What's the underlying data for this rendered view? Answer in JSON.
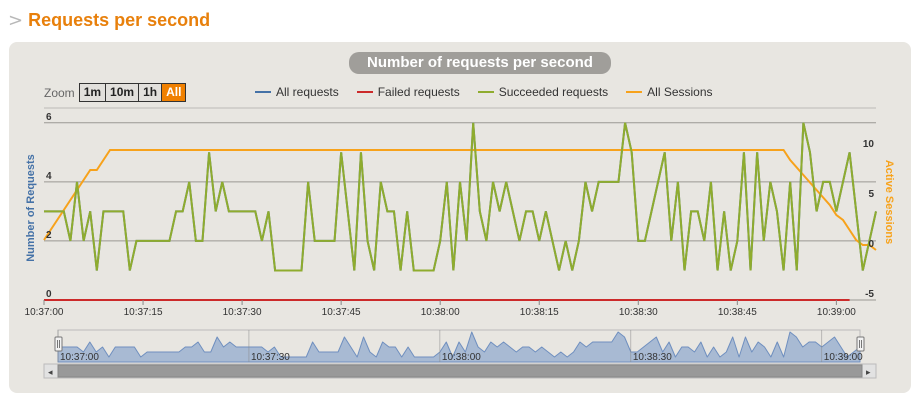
{
  "page": {
    "chevron": ">",
    "title": "Requests per second"
  },
  "zoom": {
    "label": "Zoom",
    "buttons": [
      "1m",
      "10m",
      "1h",
      "All"
    ],
    "active": "All"
  },
  "chart_data": {
    "type": "line",
    "title": "Number of requests per second",
    "ylabel": "Number of Requests",
    "y2label": "Active Sessions",
    "ylim": [
      0,
      6.5
    ],
    "y2lim": [
      -5,
      10
    ],
    "yticks": [
      "0",
      "2",
      "4",
      "6"
    ],
    "y2ticks": [
      "-5",
      "0",
      "5",
      "10"
    ],
    "xticks": [
      "10:37:00",
      "10:37:15",
      "10:37:30",
      "10:37:45",
      "10:38:00",
      "10:38:15",
      "10:38:30",
      "10:38:45",
      "10:39:00"
    ],
    "x_start": "10:37:00",
    "x_step_seconds": 1,
    "legend_position": "top",
    "grid": true,
    "series": [
      {
        "name": "All requests",
        "color": "#4572a7",
        "axis": "left",
        "values": [
          3,
          3,
          3,
          3,
          2,
          4,
          2,
          3,
          1,
          3,
          3,
          3,
          3,
          1,
          2,
          2,
          2,
          2,
          2,
          2,
          3,
          3,
          4,
          2,
          2,
          5,
          3,
          4,
          3,
          3,
          3,
          3,
          3,
          2,
          3,
          1,
          1,
          1,
          1,
          1,
          4,
          2,
          2,
          2,
          2,
          5,
          3,
          1,
          5,
          2,
          1,
          4,
          3,
          3,
          1,
          3,
          1,
          1,
          1,
          1,
          2,
          4,
          1,
          4,
          2,
          6,
          3,
          2,
          4,
          3,
          4,
          3,
          2,
          3,
          3,
          2,
          3,
          2,
          1,
          2,
          1,
          2,
          4,
          3,
          4,
          4,
          4,
          4,
          6,
          5,
          2,
          2,
          3,
          4,
          5,
          2,
          4,
          1,
          3,
          3,
          2,
          4,
          1,
          3,
          1,
          2,
          5,
          1,
          5,
          2,
          4,
          3,
          1,
          4,
          1,
          6,
          5,
          3,
          4,
          4,
          3,
          4,
          5,
          3,
          1,
          2,
          3
        ]
      },
      {
        "name": "Failed requests",
        "color": "#cc2a2a",
        "axis": "left",
        "values": [
          0,
          0,
          0,
          0,
          0,
          0,
          0,
          0,
          0,
          0,
          0,
          0,
          0,
          0,
          0,
          0,
          0,
          0,
          0,
          0,
          0,
          0,
          0,
          0,
          0,
          0,
          0,
          0,
          0,
          0,
          0,
          0,
          0,
          0,
          0,
          0,
          0,
          0,
          0,
          0,
          0,
          0,
          0,
          0,
          0,
          0,
          0,
          0,
          0,
          0,
          0,
          0,
          0,
          0,
          0,
          0,
          0,
          0,
          0,
          0,
          0,
          0,
          0,
          0,
          0,
          0,
          0,
          0,
          0,
          0,
          0,
          0,
          0,
          0,
          0,
          0,
          0,
          0,
          0,
          0,
          0,
          0,
          0,
          0,
          0,
          0,
          0,
          0,
          0,
          0,
          0,
          0,
          0,
          0,
          0,
          0,
          0,
          0,
          0,
          0,
          0,
          0,
          0,
          0,
          0,
          0,
          0,
          0,
          0,
          0,
          0,
          0,
          0,
          0,
          0,
          0,
          0,
          0,
          0,
          0,
          0,
          0,
          0
        ]
      },
      {
        "name": "Succeeded requests",
        "color": "#8fac2e",
        "axis": "left",
        "values": [
          3,
          3,
          3,
          3,
          2,
          4,
          2,
          3,
          1,
          3,
          3,
          3,
          3,
          1,
          2,
          2,
          2,
          2,
          2,
          2,
          3,
          3,
          4,
          2,
          2,
          5,
          3,
          4,
          3,
          3,
          3,
          3,
          3,
          2,
          3,
          1,
          1,
          1,
          1,
          1,
          4,
          2,
          2,
          2,
          2,
          5,
          3,
          1,
          5,
          2,
          1,
          4,
          3,
          3,
          1,
          3,
          1,
          1,
          1,
          1,
          2,
          4,
          1,
          4,
          2,
          6,
          3,
          2,
          4,
          3,
          4,
          3,
          2,
          3,
          3,
          2,
          3,
          2,
          1,
          2,
          1,
          2,
          4,
          3,
          4,
          4,
          4,
          4,
          6,
          5,
          2,
          2,
          3,
          4,
          5,
          2,
          4,
          1,
          3,
          3,
          2,
          4,
          1,
          3,
          1,
          2,
          5,
          1,
          5,
          2,
          4,
          3,
          1,
          4,
          1,
          6,
          5,
          3,
          4,
          4,
          3,
          4,
          5,
          3,
          1,
          2,
          3
        ]
      },
      {
        "name": "All Sessions",
        "color": "#f7a21b",
        "axis": "right",
        "values": [
          [
            0,
            1
          ],
          [
            7,
            8
          ],
          [
            8,
            8
          ],
          [
            10,
            10
          ],
          [
            112,
            10
          ],
          [
            113,
            9
          ],
          [
            117,
            6
          ],
          [
            119,
            4.5
          ],
          [
            120,
            3.5
          ],
          [
            121,
            3
          ],
          [
            122,
            2
          ],
          [
            123,
            1
          ],
          [
            124,
            0.5
          ],
          [
            125,
            0.5
          ],
          [
            126,
            0
          ]
        ]
      }
    ]
  },
  "navigator": {
    "xticks": [
      "10:37:00",
      "10:37:30",
      "10:38:00",
      "10:38:30",
      "10:39:00"
    ]
  },
  "scrollbar": {
    "left_arrow": "◂",
    "right_arrow": "▸"
  }
}
